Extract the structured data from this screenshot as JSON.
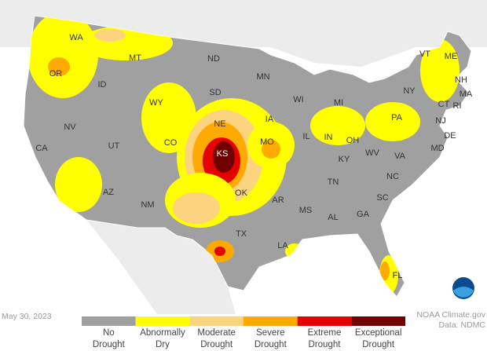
{
  "map": {
    "states": [
      "WA",
      "OR",
      "CA",
      "NV",
      "ID",
      "MT",
      "WY",
      "UT",
      "AZ",
      "NM",
      "CO",
      "ND",
      "SD",
      "NE",
      "KS",
      "OK",
      "TX",
      "MN",
      "IA",
      "MO",
      "AR",
      "LA",
      "WI",
      "IL",
      "MS",
      "AL",
      "GA",
      "FL",
      "MI",
      "IN",
      "KY",
      "TN",
      "OH",
      "WV",
      "VA",
      "NC",
      "SC",
      "PA",
      "NY",
      "VT",
      "ME",
      "NH",
      "MA",
      "CT",
      "RI",
      "NJ",
      "DE",
      "MD"
    ],
    "date": "May 30, 2023",
    "credit": [
      "NOAA Climate.gov",
      "Data: NDMC"
    ],
    "legend": [
      {
        "lines": [
          "No",
          "Drought"
        ],
        "color": "#a0a0a0"
      },
      {
        "lines": [
          "Abnormally",
          "Dry"
        ],
        "color": "#ffff00"
      },
      {
        "lines": [
          "Moderate",
          "Drought"
        ],
        "color": "#fcd37f"
      },
      {
        "lines": [
          "Severe",
          "Drought"
        ],
        "color": "#ffaa00"
      },
      {
        "lines": [
          "Extreme",
          "Drought"
        ],
        "color": "#e60000"
      },
      {
        "lines": [
          "Exceptional",
          "Drought"
        ],
        "color": "#730000"
      }
    ]
  }
}
